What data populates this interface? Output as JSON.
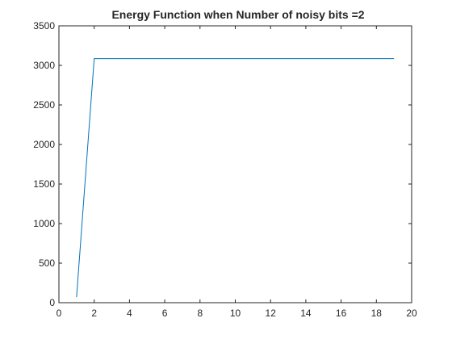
{
  "chart_data": {
    "type": "line",
    "title": "Energy Function when Number of noisy bits =2",
    "xlabel": "",
    "ylabel": "",
    "xlim": [
      0,
      20
    ],
    "ylim": [
      0,
      3500
    ],
    "xticks": [
      0,
      2,
      4,
      6,
      8,
      10,
      12,
      14,
      16,
      18,
      20
    ],
    "yticks": [
      0,
      500,
      1000,
      1500,
      2000,
      2500,
      3000,
      3500
    ],
    "grid": false,
    "series": [
      {
        "color": "#0072bd",
        "x": [
          1,
          2,
          3,
          4,
          5,
          6,
          7,
          8,
          9,
          10,
          11,
          12,
          13,
          14,
          15,
          16,
          17,
          18,
          19
        ],
        "y": [
          70,
          3085,
          3085,
          3085,
          3085,
          3085,
          3085,
          3085,
          3085,
          3085,
          3085,
          3085,
          3085,
          3085,
          3085,
          3085,
          3085,
          3085,
          3085
        ]
      }
    ]
  }
}
